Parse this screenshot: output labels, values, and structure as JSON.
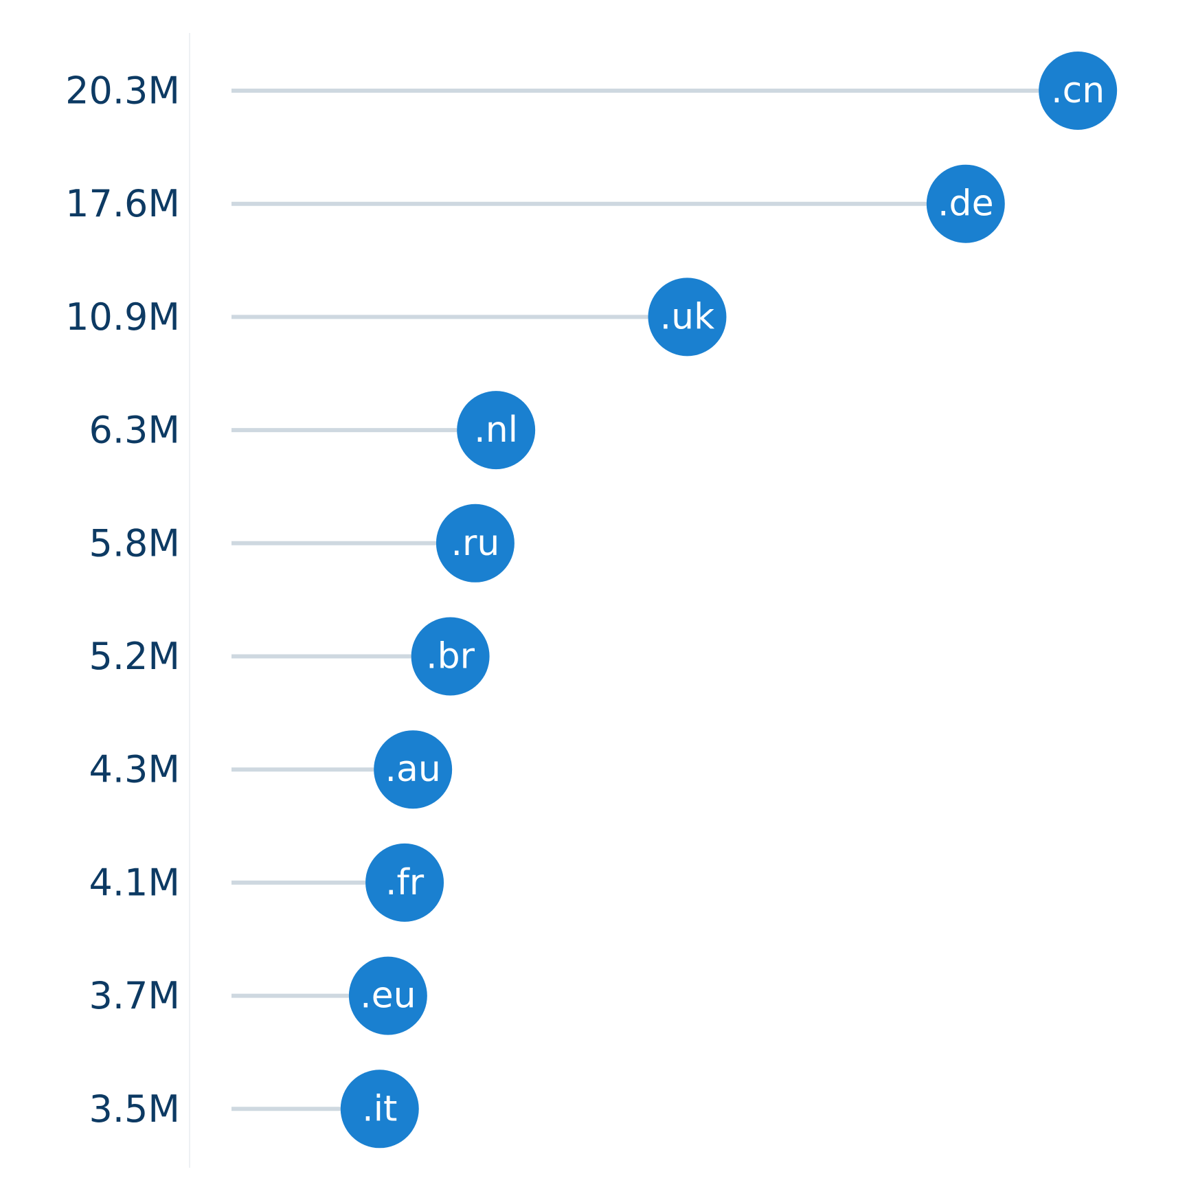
{
  "chart_data": {
    "type": "lollipop",
    "categories": [
      ".cn",
      ".de",
      ".uk",
      ".nl",
      ".ru",
      ".br",
      ".au",
      ".fr",
      ".eu",
      ".it"
    ],
    "values": [
      20.3,
      17.6,
      10.9,
      6.3,
      5.8,
      5.2,
      4.3,
      4.1,
      3.7,
      3.5
    ],
    "tick_labels": [
      "20.3M",
      "17.6M",
      "10.9M",
      "6.3M",
      "5.8M",
      "5.2M",
      "4.3M",
      "4.1M",
      "3.7M",
      "3.5M"
    ],
    "units": "M",
    "title": "",
    "xlabel": "",
    "ylabel": "",
    "xlim": [
      0,
      20.3
    ],
    "grid": false,
    "legend": "none",
    "colors": {
      "marker": "#1a80d0",
      "stem": "#ced8e0",
      "axis": "#eef1f4",
      "tick_text": "#0d3a63",
      "marker_text": "#ffffff"
    }
  }
}
